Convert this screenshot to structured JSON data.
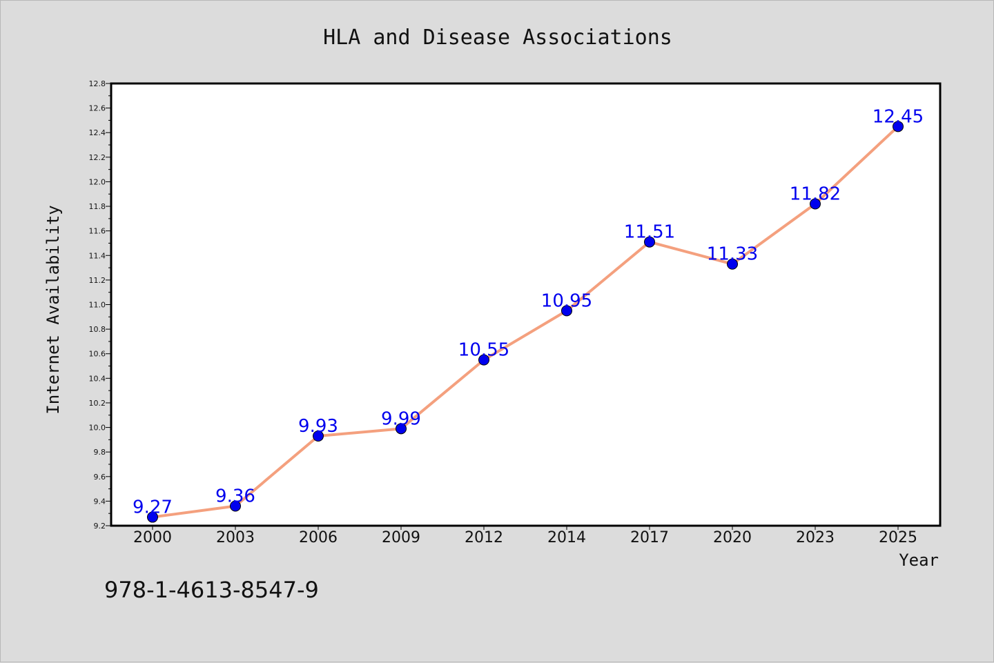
{
  "chart_data": {
    "type": "line",
    "title": "HLA and Disease Associations",
    "xlabel": "Year",
    "ylabel": "Internet Availability",
    "categories": [
      "2000",
      "2003",
      "2006",
      "2009",
      "2012",
      "2014",
      "2017",
      "2020",
      "2023",
      "2025"
    ],
    "series": [
      {
        "values": [
          9.27,
          9.36,
          9.93,
          9.99,
          10.55,
          10.95,
          11.51,
          11.33,
          11.82,
          12.45
        ],
        "data_labels": [
          "9.27",
          "9.36",
          "9.93",
          "9.99",
          "10.55",
          "10.95",
          "11.51",
          "11.33",
          "11.82",
          "12.45"
        ],
        "line_color": "#f4a07e",
        "marker_color": "#0000ee",
        "label_color": "#0000ee"
      }
    ],
    "ylim": [
      9.2,
      12.8
    ],
    "yticks": [
      "9.2",
      "9.4",
      "9.6",
      "9.8",
      "10.0",
      "10.2",
      "10.4",
      "10.6",
      "10.8",
      "11.0",
      "11.2",
      "11.4",
      "11.6",
      "11.8",
      "12.0",
      "12.2",
      "12.4",
      "12.6",
      "12.8"
    ],
    "grid": false,
    "legend": "none"
  },
  "annotation": "978-1-4613-8547-9",
  "colors": {
    "figure_background": "#dcdcdc",
    "plot_background": "#ffffff",
    "axis": "#000000"
  }
}
